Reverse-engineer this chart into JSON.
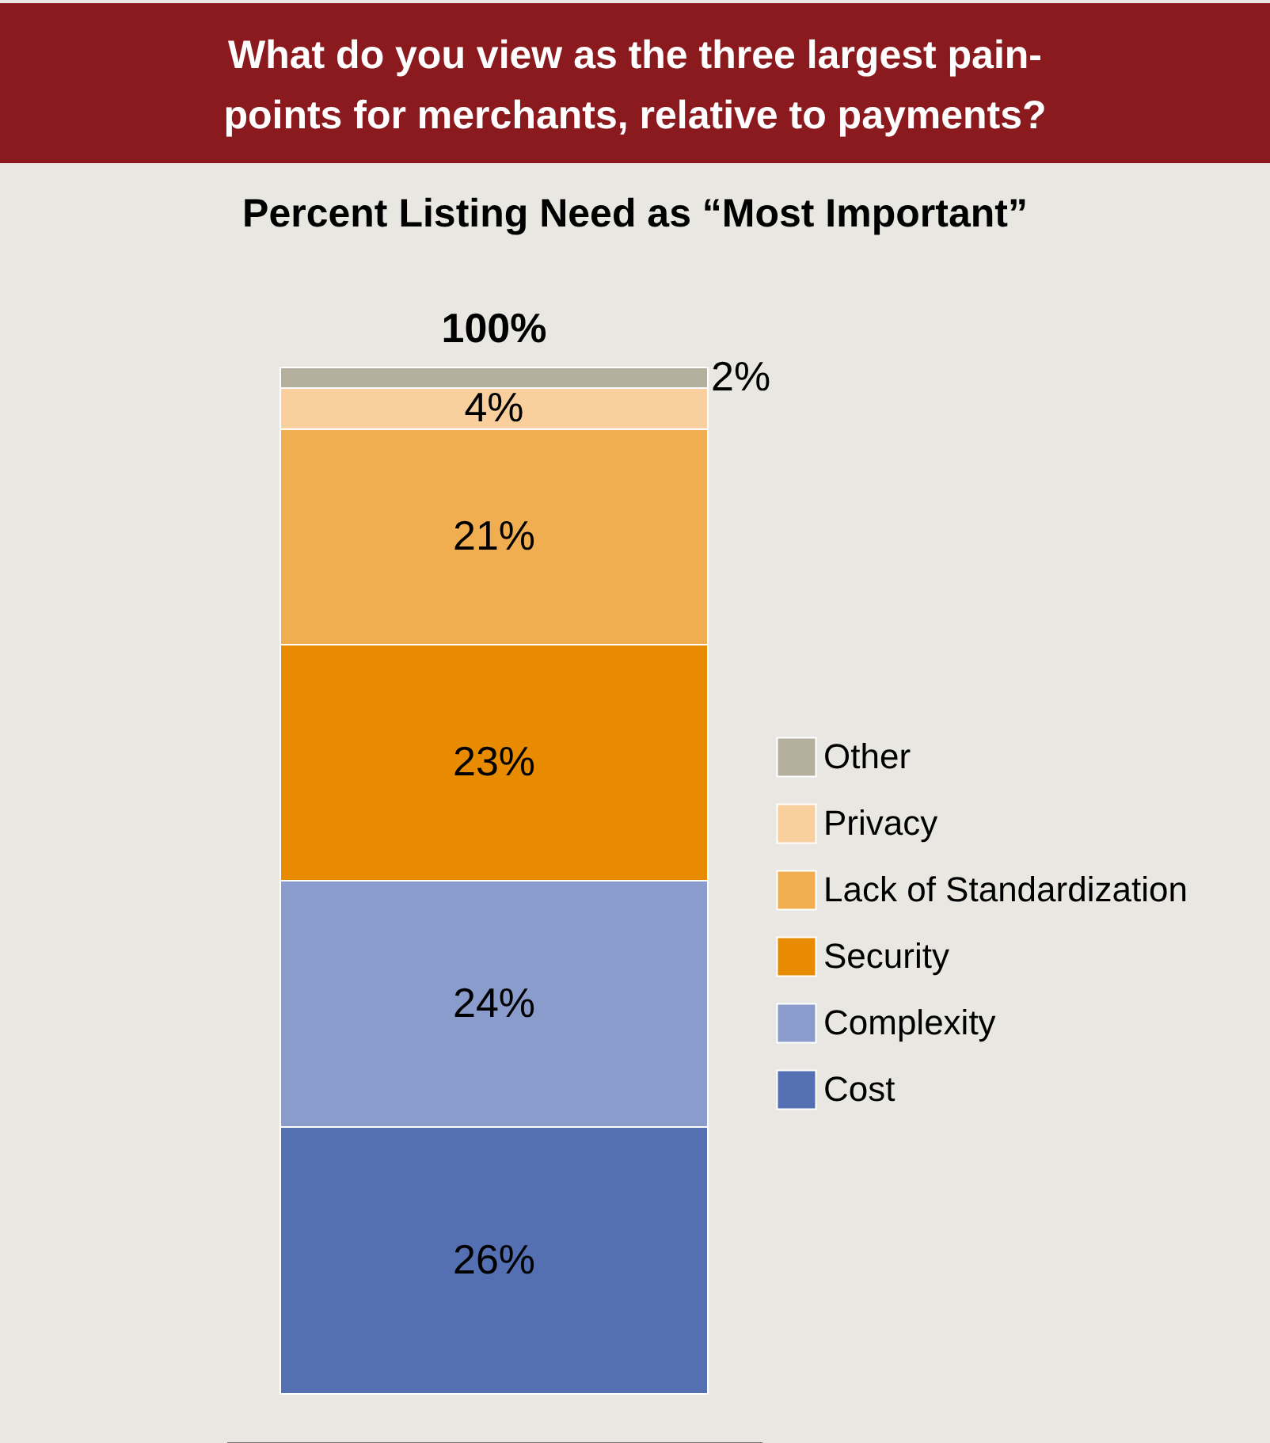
{
  "chart_data": {
    "type": "bar",
    "stacked": true,
    "title": "What do you view as the three largest pain-points for merchants, relative to payments?",
    "subtitle": "Percent Listing Need as “Most Important”",
    "categories": [
      null
    ],
    "series": [
      {
        "name": "Cost",
        "color": "#5470b3",
        "values": [
          26
        ],
        "value_labels": [
          "26%"
        ]
      },
      {
        "name": "Complexity",
        "color": "#8a9ccc",
        "values": [
          24
        ],
        "value_labels": [
          "24%"
        ]
      },
      {
        "name": "Security",
        "color": "#e98b00",
        "values": [
          23
        ],
        "value_labels": [
          "23%"
        ]
      },
      {
        "name": "Lack of Standardization",
        "color": "#f0ae50",
        "values": [
          21
        ],
        "value_labels": [
          "21%"
        ]
      },
      {
        "name": "Privacy",
        "color": "#f8cf9d",
        "values": [
          4
        ],
        "value_labels": [
          "4%"
        ]
      },
      {
        "name": "Other",
        "color": "#b5b09e",
        "values": [
          2
        ],
        "value_labels": [
          "2%"
        ]
      }
    ],
    "totals": [
      "100%"
    ],
    "legend": "right",
    "grid": false
  }
}
